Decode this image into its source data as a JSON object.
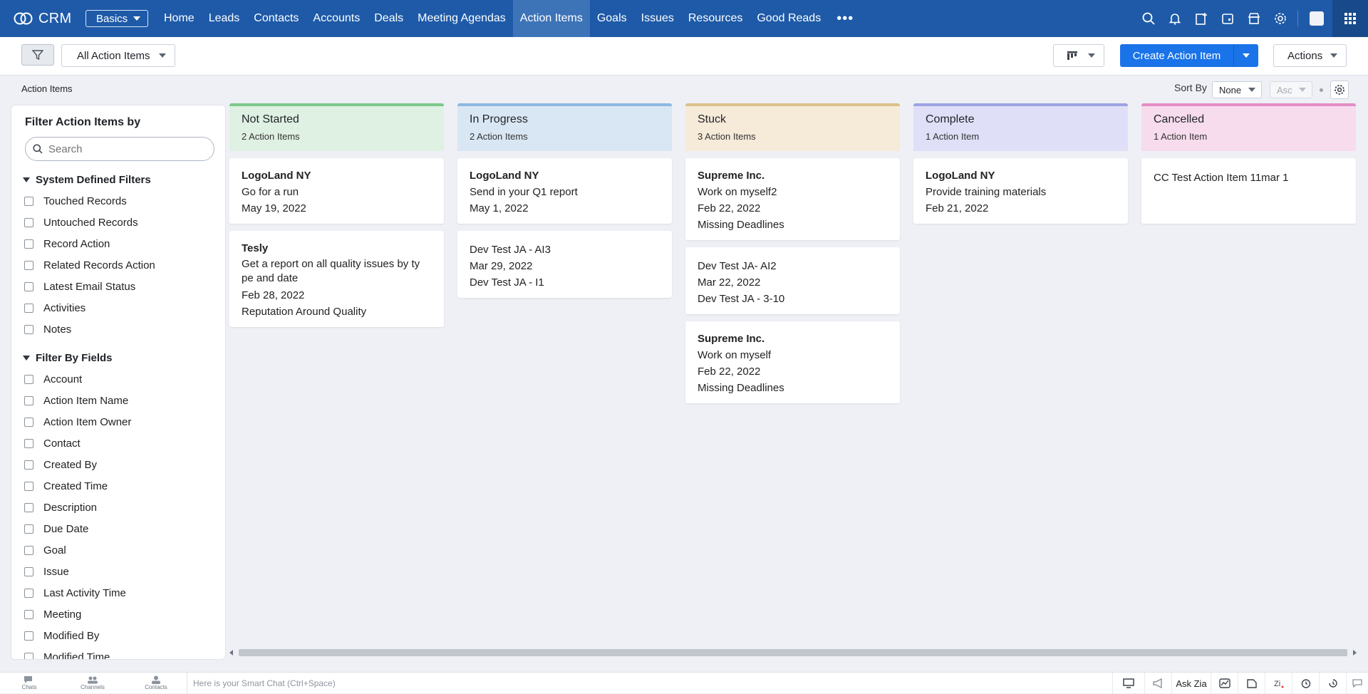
{
  "nav": {
    "logo_text": "CRM",
    "edition": "Basics",
    "tabs": [
      {
        "label": "Home"
      },
      {
        "label": "Leads"
      },
      {
        "label": "Contacts"
      },
      {
        "label": "Accounts"
      },
      {
        "label": "Deals"
      },
      {
        "label": "Meeting Agendas"
      },
      {
        "label": "Action Items",
        "active": true
      },
      {
        "label": "Goals"
      },
      {
        "label": "Issues"
      },
      {
        "label": "Resources"
      },
      {
        "label": "Good Reads"
      }
    ],
    "more": "•••"
  },
  "toolbar": {
    "view_label": "All Action Items",
    "create_label": "Create Action Item",
    "actions_label": "Actions"
  },
  "subheader": {
    "page_label": "Action Items",
    "sort_by_label": "Sort By",
    "sort_value": "None",
    "order_value": "Asc"
  },
  "sidebar": {
    "title": "Filter Action Items by",
    "search_placeholder": "Search",
    "system_section": "System Defined Filters",
    "system_filters": [
      "Touched Records",
      "Untouched Records",
      "Record Action",
      "Related Records Action",
      "Latest Email Status",
      "Activities",
      "Notes"
    ],
    "fields_section": "Filter By Fields",
    "field_filters": [
      "Account",
      "Action Item Name",
      "Action Item Owner",
      "Contact",
      "Created By",
      "Created Time",
      "Description",
      "Due Date",
      "Goal",
      "Issue",
      "Last Activity Time",
      "Meeting",
      "Modified By",
      "Modified Time"
    ]
  },
  "columns": [
    {
      "title": "Not Started",
      "count": "2 Action Items",
      "color": "#dff1e2",
      "border": "#7cc98a",
      "cards": [
        {
          "account": "LogoLand NY",
          "name": "Go for a run",
          "date": "May 19, 2022"
        },
        {
          "account": "Tesly",
          "name": "Get a report on all quality issues by ty pe and date",
          "date": "Feb 28, 2022",
          "related": "Reputation Around Quality"
        }
      ]
    },
    {
      "title": "In Progress",
      "count": "2 Action Items",
      "color": "#d9e7f4",
      "border": "#8db8e0",
      "cards": [
        {
          "account": "LogoLand NY",
          "name": "Send in your Q1 report",
          "date": "May 1, 2022"
        },
        {
          "name": "Dev Test JA - AI3",
          "date": "Mar 29, 2022",
          "related": "Dev Test JA - I1"
        }
      ]
    },
    {
      "title": "Stuck",
      "count": "3 Action Items",
      "color": "#f6ead8",
      "border": "#dcc08a",
      "cards": [
        {
          "account": "Supreme Inc.",
          "name": "Work on myself2",
          "date": "Feb 22, 2022",
          "related": "Missing Deadlines"
        },
        {
          "name": "Dev Test JA- AI2",
          "date": "Mar 22, 2022",
          "related": "Dev Test JA - 3-10"
        },
        {
          "account": "Supreme Inc.",
          "name": "Work on myself",
          "date": "Feb 22, 2022",
          "related": "Missing Deadlines"
        }
      ]
    },
    {
      "title": "Complete",
      "count": "1 Action Item",
      "color": "#dfe0f7",
      "border": "#9ea3e3",
      "cards": [
        {
          "account": "LogoLand NY",
          "name": "Provide training materials",
          "date": "Feb 21, 2022"
        }
      ]
    },
    {
      "title": "Cancelled",
      "count": "1 Action Item",
      "color": "#f7dced",
      "border": "#e48cc5",
      "cards": [
        {
          "name": "CC Test Action Item 11mar 1"
        }
      ]
    }
  ],
  "bottombar": {
    "items": [
      "Chats",
      "Channels",
      "Contacts"
    ],
    "smart_chat_placeholder": "Here is your Smart Chat (Ctrl+Space)",
    "ask_zia": "Ask Zia"
  }
}
